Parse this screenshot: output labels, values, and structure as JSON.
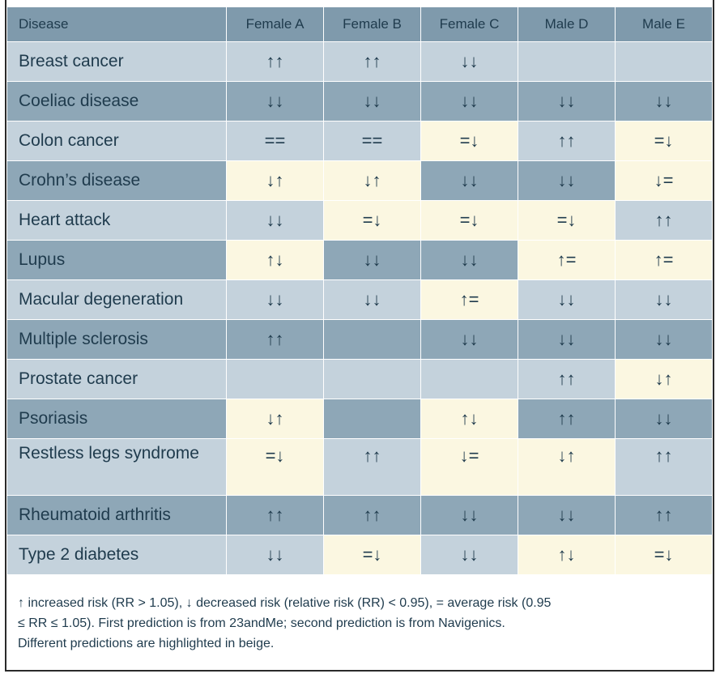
{
  "table": {
    "headers": [
      "Disease",
      "Female A",
      "Female B",
      "Female C",
      "Male D",
      "Male E"
    ],
    "rows": [
      {
        "disease": "Breast cancer",
        "cells": [
          "↑↑",
          "↑↑",
          "↓↓",
          "",
          ""
        ],
        "hl": [
          false,
          false,
          false,
          false,
          false
        ],
        "shade": "light"
      },
      {
        "disease": "Coeliac disease",
        "cells": [
          "↓↓",
          "↓↓",
          "↓↓",
          "↓↓",
          "↓↓"
        ],
        "hl": [
          false,
          false,
          false,
          false,
          false
        ],
        "shade": "dark"
      },
      {
        "disease": "Colon cancer",
        "cells": [
          "==",
          "==",
          "=↓",
          "↑↑",
          "=↓"
        ],
        "hl": [
          false,
          false,
          true,
          false,
          true
        ],
        "shade": "light"
      },
      {
        "disease": "Crohn’s disease",
        "cells": [
          "↓↑",
          "↓↑",
          "↓↓",
          "↓↓",
          "↓="
        ],
        "hl": [
          true,
          true,
          false,
          false,
          true
        ],
        "shade": "dark"
      },
      {
        "disease": "Heart attack",
        "cells": [
          "↓↓",
          "=↓",
          "=↓",
          "=↓",
          "↑↑"
        ],
        "hl": [
          false,
          true,
          true,
          true,
          false
        ],
        "shade": "light"
      },
      {
        "disease": "Lupus",
        "cells": [
          "↑↓",
          "↓↓",
          "↓↓",
          "↑=",
          "↑="
        ],
        "hl": [
          true,
          false,
          false,
          true,
          true
        ],
        "shade": "dark"
      },
      {
        "disease": "Macular degeneration",
        "cells": [
          "↓↓",
          "↓↓",
          "↑=",
          "↓↓",
          "↓↓"
        ],
        "hl": [
          false,
          false,
          true,
          false,
          false
        ],
        "shade": "light"
      },
      {
        "disease": "Multiple sclerosis",
        "cells": [
          "↑↑",
          "",
          "↓↓",
          "↓↓",
          "↓↓"
        ],
        "hl": [
          false,
          false,
          false,
          false,
          false
        ],
        "shade": "dark"
      },
      {
        "disease": "Prostate cancer",
        "cells": [
          "",
          "",
          "",
          "↑↑",
          "↓↑"
        ],
        "hl": [
          false,
          false,
          false,
          false,
          true
        ],
        "shade": "light"
      },
      {
        "disease": "Psoriasis",
        "cells": [
          "↓↑",
          "",
          "↑↓",
          "↑↑",
          "↓↓"
        ],
        "hl": [
          true,
          false,
          true,
          false,
          false
        ],
        "shade": "dark"
      },
      {
        "disease": "Restless legs syndrome",
        "cells": [
          "=↓",
          "↑↑",
          "↓=",
          "↓↑",
          "↑↑"
        ],
        "hl": [
          true,
          false,
          true,
          true,
          false
        ],
        "shade": "light",
        "tall": true
      },
      {
        "disease": "Rheumatoid arthritis",
        "cells": [
          "↑↑",
          "↑↑",
          "↓↓",
          "↓↓",
          "↑↑"
        ],
        "hl": [
          false,
          false,
          false,
          false,
          false
        ],
        "shade": "dark"
      },
      {
        "disease": "Type 2 diabetes",
        "cells": [
          "↓↓",
          "=↓",
          "↓↓",
          "↑↓",
          "=↓"
        ],
        "hl": [
          false,
          true,
          false,
          true,
          true
        ],
        "shade": "light"
      }
    ]
  },
  "footer": {
    "line1": "↑ increased risk (RR > 1.05), ↓ decreased risk (relative risk (RR) < 0.95), = average risk (0.95",
    "line2": "≤ RR ≤ 1.05). First prediction is from 23andMe; second prediction is from Navigenics.",
    "line3": "Different predictions are highlighted in beige."
  },
  "colors": {
    "header_bg": "#7f9aac",
    "row_light": "#c4d2dc",
    "row_dark": "#8ea7b7",
    "highlight_beige": "#fbf7e1",
    "text": "#1f3b4d"
  }
}
